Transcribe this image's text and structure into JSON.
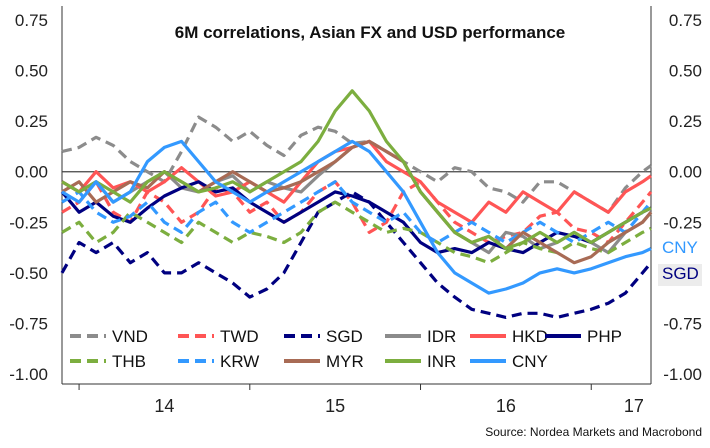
{
  "chart_data": {
    "type": "line",
    "title": "6M correlations, Asian FX and USD performance",
    "source": "Source: Nordea Markets and Macrobond",
    "ylim": [
      -1.0,
      0.75
    ],
    "yticks": [
      "0.75",
      "0.50",
      "0.25",
      "0.00",
      "-0.25",
      "-0.50",
      "-0.75",
      "-1.00"
    ],
    "ytick_values": [
      0.75,
      0.5,
      0.25,
      0.0,
      -0.25,
      -0.5,
      -0.75,
      -1.0
    ],
    "xlim": [
      13.9,
      17.35
    ],
    "xticks": [
      "14",
      "15",
      "16",
      "17"
    ],
    "xtick_positions": [
      14.5,
      15.5,
      16.5,
      17.25
    ],
    "xtick_marks": [
      14.0,
      15.0,
      16.0,
      17.0
    ],
    "zero_line": true,
    "legend_position": "bottom-left",
    "end_labels": [
      {
        "text": "CNY",
        "color": "#3399ff",
        "y": -0.38
      },
      {
        "text": "SGD",
        "color": "#000080",
        "y": -0.5
      }
    ],
    "series": [
      {
        "name": "VND",
        "color": "#8c8c8c",
        "dash": true,
        "x": [
          13.9,
          14.0,
          14.1,
          14.2,
          14.3,
          14.4,
          14.5,
          14.6,
          14.7,
          14.8,
          14.9,
          15.0,
          15.1,
          15.2,
          15.3,
          15.4,
          15.5,
          15.6,
          15.7,
          15.8,
          15.9,
          16.0,
          16.1,
          16.2,
          16.3,
          16.4,
          16.5,
          16.6,
          16.7,
          16.8,
          16.9,
          17.0,
          17.1,
          17.2,
          17.3,
          17.35
        ],
        "y": [
          0.1,
          0.12,
          0.17,
          0.13,
          0.05,
          0.0,
          -0.05,
          0.1,
          0.27,
          0.22,
          0.15,
          0.2,
          0.13,
          0.08,
          0.18,
          0.22,
          0.2,
          0.14,
          0.15,
          0.1,
          0.05,
          0.0,
          -0.05,
          0.02,
          0.0,
          -0.08,
          -0.1,
          -0.15,
          -0.05,
          -0.05,
          -0.1,
          -0.15,
          -0.2,
          -0.08,
          0.0,
          0.03
        ]
      },
      {
        "name": "TWD",
        "color": "#ff5555",
        "dash": true,
        "x": [
          13.9,
          14.0,
          14.1,
          14.2,
          14.3,
          14.4,
          14.5,
          14.6,
          14.7,
          14.8,
          14.9,
          15.0,
          15.1,
          15.2,
          15.3,
          15.4,
          15.5,
          15.6,
          15.7,
          15.8,
          15.9,
          16.0,
          16.1,
          16.2,
          16.3,
          16.4,
          16.5,
          16.6,
          16.7,
          16.8,
          16.9,
          17.0,
          17.1,
          17.2,
          17.3,
          17.35
        ],
        "y": [
          -0.2,
          -0.15,
          -0.05,
          -0.2,
          -0.25,
          -0.1,
          -0.15,
          -0.25,
          -0.2,
          -0.08,
          -0.1,
          -0.2,
          -0.15,
          -0.25,
          -0.2,
          -0.1,
          -0.05,
          -0.15,
          -0.3,
          -0.25,
          -0.1,
          -0.05,
          -0.15,
          -0.25,
          -0.3,
          -0.35,
          -0.32,
          -0.3,
          -0.22,
          -0.2,
          -0.28,
          -0.3,
          -0.35,
          -0.25,
          -0.15,
          -0.1
        ]
      },
      {
        "name": "SGD",
        "color": "#000080",
        "dash": true,
        "x": [
          13.9,
          14.0,
          14.1,
          14.2,
          14.3,
          14.4,
          14.5,
          14.6,
          14.7,
          14.8,
          14.9,
          15.0,
          15.1,
          15.2,
          15.3,
          15.4,
          15.5,
          15.6,
          15.7,
          15.8,
          15.9,
          16.0,
          16.1,
          16.2,
          16.3,
          16.4,
          16.5,
          16.6,
          16.7,
          16.8,
          16.9,
          17.0,
          17.1,
          17.2,
          17.3,
          17.35
        ],
        "y": [
          -0.5,
          -0.35,
          -0.4,
          -0.35,
          -0.45,
          -0.4,
          -0.5,
          -0.5,
          -0.45,
          -0.5,
          -0.55,
          -0.62,
          -0.58,
          -0.5,
          -0.35,
          -0.2,
          -0.15,
          -0.1,
          -0.15,
          -0.25,
          -0.35,
          -0.45,
          -0.55,
          -0.62,
          -0.68,
          -0.7,
          -0.72,
          -0.7,
          -0.7,
          -0.72,
          -0.7,
          -0.68,
          -0.65,
          -0.6,
          -0.5,
          -0.45
        ]
      },
      {
        "name": "IDR",
        "color": "#8b8b8b",
        "dash": false,
        "x": [
          13.9,
          14.0,
          14.1,
          14.2,
          14.3,
          14.4,
          14.5,
          14.6,
          14.7,
          14.8,
          14.9,
          15.0,
          15.1,
          15.2,
          15.3,
          15.4,
          15.5,
          15.6,
          15.7,
          15.8,
          15.9,
          16.0,
          16.1,
          16.2,
          16.3,
          16.4,
          16.5,
          16.6,
          16.7,
          16.8,
          16.9,
          17.0,
          17.1,
          17.2,
          17.3,
          17.35
        ],
        "y": [
          -0.05,
          -0.1,
          -0.05,
          -0.15,
          -0.1,
          -0.05,
          0.0,
          -0.08,
          -0.1,
          -0.05,
          -0.02,
          -0.1,
          -0.05,
          -0.08,
          -0.1,
          -0.02,
          0.05,
          0.12,
          0.15,
          0.1,
          0.05,
          -0.1,
          -0.2,
          -0.3,
          -0.35,
          -0.4,
          -0.3,
          -0.32,
          -0.38,
          -0.35,
          -0.3,
          -0.35,
          -0.4,
          -0.3,
          -0.25,
          -0.2
        ]
      },
      {
        "name": "HKD",
        "color": "#ff5555",
        "dash": false,
        "x": [
          13.9,
          14.0,
          14.1,
          14.2,
          14.3,
          14.4,
          14.5,
          14.6,
          14.7,
          14.8,
          14.9,
          15.0,
          15.1,
          15.2,
          15.3,
          15.4,
          15.5,
          15.6,
          15.7,
          15.8,
          15.9,
          16.0,
          16.1,
          16.2,
          16.3,
          16.4,
          16.5,
          16.6,
          16.7,
          16.8,
          16.9,
          17.0,
          17.1,
          17.2,
          17.3,
          17.35
        ],
        "y": [
          -0.05,
          -0.1,
          0.0,
          -0.08,
          -0.05,
          -0.1,
          -0.05,
          0.02,
          -0.05,
          -0.12,
          -0.1,
          -0.05,
          -0.1,
          -0.15,
          -0.05,
          0.05,
          0.1,
          0.12,
          0.15,
          0.05,
          0.0,
          -0.05,
          -0.15,
          -0.2,
          -0.25,
          -0.15,
          -0.2,
          -0.1,
          -0.15,
          -0.2,
          -0.1,
          -0.15,
          -0.2,
          -0.1,
          -0.05,
          -0.02
        ]
      },
      {
        "name": "PHP",
        "color": "#000080",
        "dash": false,
        "x": [
          13.9,
          14.0,
          14.1,
          14.2,
          14.3,
          14.4,
          14.5,
          14.6,
          14.7,
          14.8,
          14.9,
          15.0,
          15.1,
          15.2,
          15.3,
          15.4,
          15.5,
          15.6,
          15.7,
          15.8,
          15.9,
          16.0,
          16.1,
          16.2,
          16.3,
          16.4,
          16.5,
          16.6,
          16.7,
          16.8,
          16.9,
          17.0,
          17.1,
          17.2,
          17.3,
          17.35
        ],
        "y": [
          -0.1,
          -0.2,
          -0.15,
          -0.22,
          -0.25,
          -0.18,
          -0.12,
          -0.08,
          -0.05,
          -0.1,
          -0.08,
          -0.15,
          -0.2,
          -0.25,
          -0.2,
          -0.15,
          -0.1,
          -0.12,
          -0.15,
          -0.2,
          -0.25,
          -0.35,
          -0.4,
          -0.38,
          -0.4,
          -0.35,
          -0.38,
          -0.4,
          -0.35,
          -0.3,
          -0.32,
          -0.35,
          -0.3,
          -0.25,
          -0.2,
          -0.18
        ]
      },
      {
        "name": "THB",
        "color": "#7cae3f",
        "dash": true,
        "x": [
          13.9,
          14.0,
          14.1,
          14.2,
          14.3,
          14.4,
          14.5,
          14.6,
          14.7,
          14.8,
          14.9,
          15.0,
          15.1,
          15.2,
          15.3,
          15.4,
          15.5,
          15.6,
          15.7,
          15.8,
          15.9,
          16.0,
          16.1,
          16.2,
          16.3,
          16.4,
          16.5,
          16.6,
          16.7,
          16.8,
          16.9,
          17.0,
          17.1,
          17.2,
          17.3,
          17.35
        ],
        "y": [
          -0.3,
          -0.25,
          -0.35,
          -0.3,
          -0.2,
          -0.25,
          -0.3,
          -0.35,
          -0.25,
          -0.3,
          -0.35,
          -0.3,
          -0.32,
          -0.35,
          -0.3,
          -0.2,
          -0.15,
          -0.2,
          -0.25,
          -0.3,
          -0.28,
          -0.3,
          -0.35,
          -0.4,
          -0.42,
          -0.45,
          -0.4,
          -0.35,
          -0.38,
          -0.4,
          -0.35,
          -0.38,
          -0.4,
          -0.35,
          -0.3,
          -0.28
        ]
      },
      {
        "name": "KRW",
        "color": "#3399ff",
        "dash": true,
        "x": [
          13.9,
          14.0,
          14.1,
          14.2,
          14.3,
          14.4,
          14.5,
          14.6,
          14.7,
          14.8,
          14.9,
          15.0,
          15.1,
          15.2,
          15.3,
          15.4,
          15.5,
          15.6,
          15.7,
          15.8,
          15.9,
          16.0,
          16.1,
          16.2,
          16.3,
          16.4,
          16.5,
          16.6,
          16.7,
          16.8,
          16.9,
          17.0,
          17.1,
          17.2,
          17.3,
          17.35
        ],
        "y": [
          -0.15,
          -0.1,
          -0.2,
          -0.25,
          -0.22,
          -0.15,
          -0.25,
          -0.3,
          -0.2,
          -0.15,
          -0.25,
          -0.3,
          -0.25,
          -0.2,
          -0.15,
          -0.1,
          -0.05,
          -0.15,
          -0.2,
          -0.25,
          -0.2,
          -0.3,
          -0.35,
          -0.3,
          -0.25,
          -0.3,
          -0.35,
          -0.3,
          -0.25,
          -0.3,
          -0.35,
          -0.3,
          -0.25,
          -0.3,
          -0.2,
          -0.15
        ]
      },
      {
        "name": "MYR",
        "color": "#a86b55",
        "dash": false,
        "x": [
          13.9,
          14.0,
          14.1,
          14.2,
          14.3,
          14.4,
          14.5,
          14.6,
          14.7,
          14.8,
          14.9,
          15.0,
          15.1,
          15.2,
          15.3,
          15.4,
          15.5,
          15.6,
          15.7,
          15.8,
          15.9,
          16.0,
          16.1,
          16.2,
          16.3,
          16.4,
          16.5,
          16.6,
          16.7,
          16.8,
          16.9,
          17.0,
          17.1,
          17.2,
          17.3,
          17.35
        ],
        "y": [
          -0.1,
          -0.05,
          -0.15,
          -0.1,
          -0.05,
          -0.08,
          0.0,
          -0.05,
          -0.1,
          -0.05,
          0.0,
          -0.05,
          -0.1,
          -0.08,
          -0.05,
          0.0,
          0.05,
          0.12,
          0.15,
          0.1,
          0.05,
          -0.1,
          -0.2,
          -0.3,
          -0.35,
          -0.32,
          -0.38,
          -0.3,
          -0.35,
          -0.4,
          -0.45,
          -0.42,
          -0.35,
          -0.3,
          -0.25,
          -0.2
        ]
      },
      {
        "name": "INR",
        "color": "#7cae3f",
        "dash": false,
        "x": [
          13.9,
          14.0,
          14.1,
          14.2,
          14.3,
          14.4,
          14.5,
          14.6,
          14.7,
          14.8,
          14.9,
          15.0,
          15.1,
          15.2,
          15.3,
          15.4,
          15.5,
          15.6,
          15.7,
          15.8,
          15.9,
          16.0,
          16.1,
          16.2,
          16.3,
          16.4,
          16.5,
          16.6,
          16.7,
          16.8,
          16.9,
          17.0,
          17.1,
          17.2,
          17.3,
          17.35
        ],
        "y": [
          -0.05,
          -0.1,
          -0.05,
          -0.1,
          -0.15,
          -0.05,
          0.0,
          -0.05,
          -0.1,
          -0.08,
          -0.05,
          -0.1,
          -0.05,
          0.0,
          0.05,
          0.15,
          0.3,
          0.4,
          0.3,
          0.15,
          0.05,
          -0.1,
          -0.2,
          -0.3,
          -0.35,
          -0.32,
          -0.38,
          -0.35,
          -0.3,
          -0.35,
          -0.3,
          -0.35,
          -0.3,
          -0.25,
          -0.2,
          -0.18
        ]
      },
      {
        "name": "CNY",
        "color": "#3399ff",
        "dash": false,
        "x": [
          13.9,
          14.0,
          14.1,
          14.2,
          14.3,
          14.4,
          14.5,
          14.6,
          14.7,
          14.8,
          14.9,
          15.0,
          15.1,
          15.2,
          15.3,
          15.4,
          15.5,
          15.6,
          15.7,
          15.8,
          15.9,
          16.0,
          16.1,
          16.2,
          16.3,
          16.4,
          16.5,
          16.6,
          16.7,
          16.8,
          16.9,
          17.0,
          17.1,
          17.2,
          17.3,
          17.35
        ],
        "y": [
          -0.1,
          -0.15,
          -0.05,
          -0.15,
          -0.1,
          0.05,
          0.12,
          0.15,
          0.05,
          -0.05,
          -0.1,
          -0.15,
          -0.1,
          -0.05,
          0.0,
          0.05,
          0.1,
          0.15,
          0.1,
          0.0,
          -0.1,
          -0.25,
          -0.4,
          -0.5,
          -0.55,
          -0.6,
          -0.58,
          -0.55,
          -0.5,
          -0.48,
          -0.5,
          -0.48,
          -0.45,
          -0.42,
          -0.4,
          -0.38
        ]
      }
    ]
  }
}
